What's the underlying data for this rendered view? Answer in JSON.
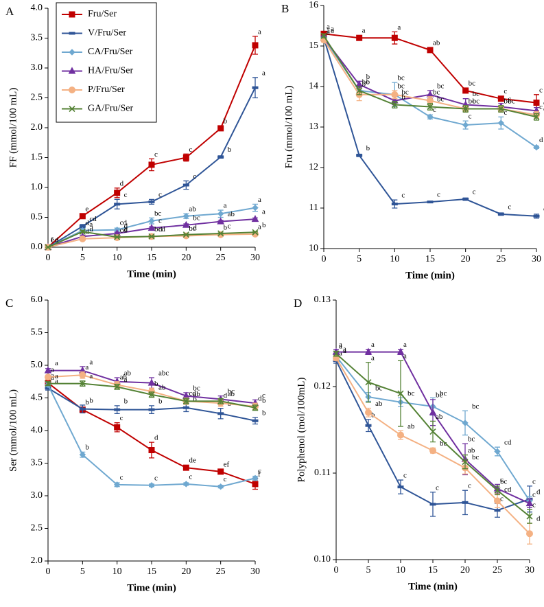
{
  "chart_data": [
    {
      "type": "line",
      "panel": "A",
      "xlabel": "Time (min)",
      "ylabel": "FF (mmol/100 mL)",
      "legend": "upper left",
      "x": [
        0,
        5,
        10,
        15,
        20,
        25,
        30
      ],
      "xlim": [
        0,
        30
      ],
      "xticks": [
        0,
        5,
        10,
        15,
        20,
        25,
        30
      ],
      "ylim": [
        0,
        4
      ],
      "yticks": [
        {
          "value": 0,
          "label": "0.0"
        },
        0.5,
        {
          "value": 1,
          "label": "1.0"
        },
        1.5,
        {
          "value": 2,
          "label": "2.0"
        },
        2.5,
        {
          "value": 3,
          "label": "3.0"
        },
        3.5,
        {
          "value": 4,
          "label": "4.0"
        }
      ],
      "series": [
        {
          "name": "Fru/Ser",
          "color": "#c00000",
          "marker": "square",
          "values": [
            0,
            0.52,
            0.91,
            1.38,
            1.5,
            1.99,
            3.38
          ],
          "errors": [
            0,
            0.02,
            0.08,
            0.1,
            0.06,
            0.03,
            0.15
          ],
          "letters": [
            "f",
            "e",
            "d",
            "c",
            "c",
            "b",
            "a"
          ]
        },
        {
          "name": "V/Fru/Ser",
          "color": "#2f5597",
          "marker": "dash",
          "values": [
            0,
            0.35,
            0.72,
            0.76,
            1.04,
            1.51,
            2.67
          ],
          "errors": [
            0,
            0.03,
            0.08,
            0.04,
            0.07,
            0.02,
            0.17
          ],
          "letters": [
            "d",
            "cd",
            "c",
            "c",
            "c",
            "b",
            "a"
          ]
        },
        {
          "name": "CA/Fru/Ser",
          "color": "#6fa8d0",
          "marker": "diamond",
          "values": [
            0,
            0.28,
            0.29,
            0.44,
            0.52,
            0.56,
            0.66
          ],
          "errors": [
            0,
            0.03,
            0.03,
            0.05,
            0.04,
            0.06,
            0.06
          ],
          "letters": [
            "e",
            "d",
            "cd",
            "bc",
            "ab",
            "a",
            "a"
          ]
        },
        {
          "name": "HA/Fru/Ser",
          "color": "#7030a0",
          "marker": "triangle",
          "values": [
            0,
            0.18,
            0.23,
            0.32,
            0.37,
            0.43,
            0.47
          ],
          "errors": [
            0,
            0.02,
            0.02,
            0.02,
            0.02,
            0.02,
            0.02
          ],
          "letters": [
            "e",
            "d",
            "d",
            "c",
            "bc",
            "ab",
            "a"
          ]
        },
        {
          "name": "P/Fru/Ser",
          "color": "#f4b183",
          "marker": "circle",
          "values": [
            0,
            0.14,
            0.16,
            0.18,
            0.19,
            0.21,
            0.22
          ],
          "errors": [
            0,
            0.01,
            0.01,
            0.01,
            0.01,
            0.01,
            0.01
          ],
          "letters": [
            "e",
            "d",
            "cd",
            "bcd",
            "bc",
            "b",
            "a"
          ]
        },
        {
          "name": "GA/Fru/Ser",
          "color": "#548235",
          "marker": "x",
          "values": [
            0,
            0.26,
            0.17,
            0.18,
            0.21,
            0.23,
            0.25
          ],
          "errors": [
            0,
            0.02,
            0.01,
            0.01,
            0.01,
            0.01,
            0.01
          ],
          "letters": [
            "e",
            "a",
            "d",
            "d",
            "d",
            "c",
            "b"
          ]
        }
      ]
    },
    {
      "type": "line",
      "panel": "B",
      "xlabel": "Time (min)",
      "ylabel": "Fru  (mmol/100 mL)",
      "x": [
        0,
        5,
        10,
        15,
        20,
        25,
        30
      ],
      "xlim": [
        0,
        30
      ],
      "xticks": [
        0,
        5,
        10,
        15,
        20,
        25,
        30
      ],
      "ylim": [
        10,
        16
      ],
      "yticks": [
        10,
        11,
        12,
        13,
        14,
        15,
        16
      ],
      "series": [
        {
          "name": "Fru/Ser",
          "color": "#c00000",
          "marker": "square",
          "values": [
            15.3,
            15.2,
            15.2,
            14.9,
            13.9,
            13.7,
            13.6
          ],
          "errors": [
            0.05,
            0.05,
            0.15,
            0.05,
            0.05,
            0.05,
            0.2
          ],
          "letters": [
            "a",
            "a",
            "a",
            "ab",
            "bc",
            "c",
            "c"
          ]
        },
        {
          "name": "V/Fru/Ser",
          "color": "#2f5597",
          "marker": "dash",
          "values": [
            15.2,
            12.3,
            11.1,
            11.15,
            11.22,
            10.85,
            10.8
          ],
          "errors": [
            0.05,
            0.03,
            0.1,
            0.02,
            0.03,
            0.03,
            0.05
          ],
          "letters": [
            "a",
            "b",
            "c",
            "c",
            "c",
            "c",
            "c"
          ]
        },
        {
          "name": "CA/Fru/Ser",
          "color": "#6fa8d0",
          "marker": "diamond",
          "values": [
            15.2,
            13.9,
            13.8,
            13.25,
            13.05,
            13.1,
            12.5
          ],
          "errors": [
            0.05,
            0.1,
            0.3,
            0.05,
            0.1,
            0.15,
            0.03
          ],
          "letters": [
            "a",
            "bc",
            "bc",
            "c",
            "c",
            "c",
            "d"
          ]
        },
        {
          "name": "HA/Fru/Ser",
          "color": "#7030a0",
          "marker": "triangle",
          "values": [
            15.2,
            14.05,
            13.65,
            13.8,
            13.55,
            13.5,
            13.4
          ],
          "errors": [
            0.05,
            0.08,
            0.1,
            0.1,
            0.15,
            0.08,
            0.08
          ],
          "letters": [
            "a",
            "b",
            "bc",
            "bc",
            "bc",
            "c",
            "c"
          ]
        },
        {
          "name": "P/Fru/Ser",
          "color": "#f4b183",
          "marker": "circle",
          "values": [
            15.15,
            13.8,
            13.8,
            13.65,
            13.45,
            13.45,
            13.3
          ],
          "errors": [
            0.05,
            0.15,
            0.1,
            0.1,
            0.08,
            0.08,
            0.08
          ],
          "letters": [
            "a",
            "b",
            "bc",
            "bc",
            "bc",
            "bc",
            "c"
          ]
        },
        {
          "name": "GA/Fru/Ser",
          "color": "#548235",
          "marker": "x",
          "values": [
            15.25,
            13.9,
            13.55,
            13.5,
            13.45,
            13.45,
            13.25
          ],
          "errors": [
            0.05,
            0.1,
            0.08,
            0.08,
            0.08,
            0.08,
            0.08
          ],
          "letters": [
            "a",
            "b",
            "b",
            "bc",
            "bc",
            "bc",
            "c"
          ]
        }
      ]
    },
    {
      "type": "line",
      "panel": "C",
      "xlabel": "Time (min)",
      "ylabel": "Ser (mmol/100 mL)",
      "x": [
        0,
        5,
        10,
        15,
        20,
        25,
        30
      ],
      "xlim": [
        0,
        30
      ],
      "xticks": [
        0,
        5,
        10,
        15,
        20,
        25,
        30
      ],
      "ylim": [
        2,
        6
      ],
      "yticks": [
        {
          "value": 2,
          "label": "2.0"
        },
        2.5,
        {
          "value": 3,
          "label": "3.0"
        },
        3.5,
        {
          "value": 4,
          "label": "4.0"
        },
        4.5,
        {
          "value": 5,
          "label": "5.0"
        },
        5.5,
        {
          "value": 6,
          "label": "6.0"
        }
      ],
      "series": [
        {
          "name": "Fru/Ser",
          "color": "#c00000",
          "marker": "square",
          "values": [
            4.73,
            4.32,
            4.05,
            3.7,
            3.43,
            3.37,
            3.18
          ],
          "errors": [
            0.03,
            0.03,
            0.07,
            0.12,
            0.03,
            0.03,
            0.08
          ],
          "letters": [
            "a",
            "b",
            "c",
            "d",
            "de",
            "ef",
            "f"
          ]
        },
        {
          "name": "V/Fru/Ser",
          "color": "#2f5597",
          "marker": "dash",
          "values": [
            4.65,
            4.33,
            4.32,
            4.32,
            4.35,
            4.26,
            4.15
          ],
          "errors": [
            0.03,
            0.06,
            0.06,
            0.06,
            0.06,
            0.08,
            0.05
          ],
          "letters": [
            "a",
            "b",
            "b",
            "b",
            "b",
            "b",
            "b"
          ]
        },
        {
          "name": "CA/Fru/Ser",
          "color": "#6fa8d0",
          "marker": "diamond",
          "values": [
            4.7,
            3.63,
            3.17,
            3.16,
            3.18,
            3.14,
            3.27
          ],
          "errors": [
            0.03,
            0.04,
            0.03,
            0.02,
            0.02,
            0.02,
            0.03
          ],
          "letters": [
            "a",
            "b",
            "c",
            "c",
            "c",
            "c",
            "c"
          ]
        },
        {
          "name": "HA/Fru/Ser",
          "color": "#7030a0",
          "marker": "triangle",
          "values": [
            4.92,
            4.92,
            4.75,
            4.73,
            4.53,
            4.48,
            4.42
          ],
          "errors": [
            0.03,
            0.06,
            0.06,
            0.08,
            0.05,
            0.05,
            0.05
          ],
          "letters": [
            "a",
            "a",
            "ab",
            "abc",
            "bc",
            "bc",
            "c"
          ]
        },
        {
          "name": "P/Fru/Ser",
          "color": "#f4b183",
          "marker": "circle",
          "values": [
            4.82,
            4.85,
            4.7,
            4.6,
            4.45,
            4.42,
            4.37
          ],
          "errors": [
            0.03,
            0.05,
            0.05,
            0.05,
            0.05,
            0.05,
            0.05
          ],
          "letters": [
            "a",
            "a",
            "ab",
            "b",
            "cd",
            "d",
            "d"
          ]
        },
        {
          "name": "GA/Fru/Ser",
          "color": "#548235",
          "marker": "x",
          "values": [
            4.72,
            4.72,
            4.67,
            4.55,
            4.45,
            4.45,
            4.35
          ],
          "errors": [
            0.03,
            0.04,
            0.04,
            0.04,
            0.04,
            0.04,
            0.04
          ],
          "letters": [
            "a",
            "a",
            "a",
            "ab",
            "ab",
            "ab",
            "b"
          ]
        }
      ]
    },
    {
      "type": "line",
      "panel": "D",
      "xlabel": "Time (min)",
      "ylabel": "Polyphenol (mol/100mL)",
      "x": [
        0,
        5,
        10,
        15,
        20,
        25,
        30
      ],
      "xlim": [
        0,
        30
      ],
      "xticks": [
        0,
        5,
        10,
        15,
        20,
        25,
        30
      ],
      "ylim": [
        0.1,
        0.13
      ],
      "yticks": [
        {
          "value": 0.1,
          "label": "0.10"
        },
        0.11,
        0.12,
        0.13
      ],
      "series": [
        {
          "name": "V/Fru/Ser",
          "color": "#2f5597",
          "marker": "dash",
          "values": [
            0.123,
            0.1155,
            0.1084,
            0.1064,
            0.1066,
            0.1057,
            0.107
          ],
          "errors": [
            0.0003,
            0.0007,
            0.0008,
            0.0014,
            0.0014,
            0.0008,
            0.0015
          ],
          "letters": [
            "a",
            "b",
            "c",
            "c",
            "c",
            "c",
            "c"
          ]
        },
        {
          "name": "CA/Fru/Ser",
          "color": "#6fa8d0",
          "marker": "diamond",
          "values": [
            0.1235,
            0.1188,
            0.1182,
            0.1177,
            0.1158,
            0.1125,
            0.1068
          ],
          "errors": [
            0.0003,
            0.0005,
            0.0005,
            0.001,
            0.0014,
            0.0005,
            0.0005
          ],
          "letters": [
            "a",
            "bc",
            "bc",
            "bc",
            "bc",
            "cd",
            "d"
          ]
        },
        {
          "name": "HA/Fru/Ser",
          "color": "#7030a0",
          "marker": "triangle",
          "values": [
            0.124,
            0.124,
            0.124,
            0.117,
            0.1116,
            0.1082,
            0.1065
          ],
          "errors": [
            0.0003,
            0.0003,
            0.0003,
            0.0015,
            0.0018,
            0.0005,
            0.0005
          ],
          "letters": [
            "a",
            "a",
            "a",
            "bc",
            "bc",
            "c",
            "c"
          ]
        },
        {
          "name": "P/Fru/Ser",
          "color": "#f4b183",
          "marker": "circle",
          "values": [
            0.1233,
            0.117,
            0.1144,
            0.1126,
            0.1106,
            0.1068,
            0.103
          ],
          "errors": [
            0.0003,
            0.0005,
            0.0005,
            0.0003,
            0.0007,
            0.0008,
            0.0012
          ],
          "letters": [
            "a",
            "ab",
            "ab",
            "bc",
            "bc",
            "cd",
            "d"
          ]
        },
        {
          "name": "GA/Fru/Ser",
          "color": "#548235",
          "marker": "x",
          "values": [
            0.1238,
            0.1205,
            0.1192,
            0.1148,
            0.1113,
            0.108,
            0.105
          ],
          "errors": [
            0.0003,
            0.0023,
            0.0038,
            0.0012,
            0.0008,
            0.0005,
            0.0008
          ],
          "letters": [
            "a",
            "a",
            "a",
            "ab",
            "ab",
            "bc",
            "c"
          ]
        }
      ]
    }
  ]
}
